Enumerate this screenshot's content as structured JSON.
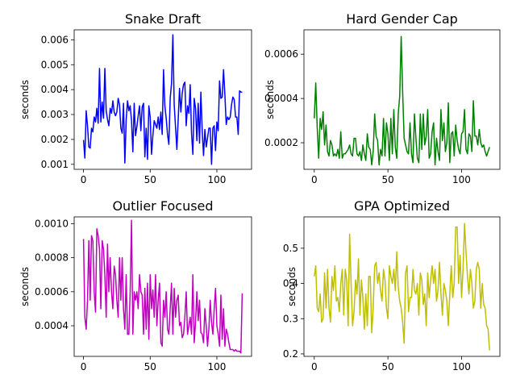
{
  "chart_data": [
    {
      "type": "line",
      "title": "Snake Draft",
      "ylabel": "seconds",
      "xlabel": "",
      "color": "#0000ff",
      "xlim": [
        -7,
        126
      ],
      "ylim": [
        0.0008,
        0.0064
      ],
      "xticks": [
        "0",
        "50",
        "100"
      ],
      "yticks": [
        "0.001",
        "0.002",
        "0.003",
        "0.004",
        "0.005",
        "0.006"
      ],
      "x_start": 0,
      "values": [
        0.00198,
        0.00125,
        0.00315,
        0.00255,
        0.0017,
        0.00165,
        0.00245,
        0.0023,
        0.0029,
        0.0027,
        0.00325,
        0.00265,
        0.00485,
        0.0027,
        0.0035,
        0.00285,
        0.00485,
        0.00315,
        0.0028,
        0.00255,
        0.00325,
        0.00305,
        0.00355,
        0.0031,
        0.00295,
        0.0031,
        0.00365,
        0.0034,
        0.00245,
        0.00225,
        0.00345,
        0.00105,
        0.0028,
        0.00355,
        0.00315,
        0.00335,
        0.00275,
        0.0015,
        0.00345,
        0.00215,
        0.0025,
        0.00295,
        0.00335,
        0.00235,
        0.0033,
        0.00345,
        0.0013,
        0.00245,
        0.0012,
        0.00335,
        0.0029,
        0.0014,
        0.00215,
        0.00275,
        0.0026,
        0.00245,
        0.0029,
        0.0024,
        0.0031,
        0.0022,
        0.0048,
        0.00335,
        0.00285,
        0.0022,
        0.0018,
        0.00365,
        0.00425,
        0.0062,
        0.0034,
        0.0025,
        0.0016,
        0.0028,
        0.00405,
        0.0031,
        0.00385,
        0.0042,
        0.0043,
        0.00255,
        0.00335,
        0.00305,
        0.0042,
        0.00225,
        0.0014,
        0.00365,
        0.00325,
        0.00195,
        0.00345,
        0.00185,
        0.0039,
        0.00235,
        0.00135,
        0.0024,
        0.0017,
        0.00205,
        0.00245,
        0.00245,
        0.001,
        0.00245,
        0.00255,
        0.00155,
        0.0027,
        0.00235,
        0.00435,
        0.00365,
        0.0037,
        0.0048,
        0.0038,
        0.0026,
        0.0029,
        0.0028,
        0.0029,
        0.0034,
        0.0037,
        0.0036,
        0.0029,
        0.0029,
        0.0022,
        0.00395,
        0.0039,
        0.0039
      ]
    },
    {
      "type": "line",
      "title": "Hard Gender Cap",
      "ylabel": "seconds",
      "xlabel": "",
      "color": "#008000",
      "xlim": [
        -7,
        126
      ],
      "ylim": [
        8e-05,
        0.00071
      ],
      "xticks": [
        "0",
        "50",
        "100"
      ],
      "yticks": [
        "0.0002",
        "0.0004",
        "0.0006"
      ],
      "x_start": 0,
      "values": [
        0.00031,
        0.00047,
        0.00027,
        0.00013,
        0.00031,
        0.00026,
        0.00034,
        0.00019,
        0.00028,
        0.00016,
        0.00014,
        0.00021,
        0.00019,
        0.00014,
        0.00015,
        0.00014,
        0.00017,
        0.00013,
        0.00025,
        0.00013,
        0.00015,
        0.00015,
        0.00016,
        0.00017,
        0.00019,
        0.00015,
        0.00014,
        0.00022,
        0.00022,
        0.00015,
        0.00014,
        0.00016,
        0.00012,
        0.00019,
        0.00015,
        0.00012,
        0.00024,
        0.00018,
        0.00017,
        0.0001,
        0.00016,
        0.00033,
        0.00023,
        0.00021,
        0.0001,
        0.00017,
        0.00014,
        0.00031,
        0.00014,
        0.00029,
        0.00024,
        0.00012,
        0.00031,
        0.00015,
        0.00035,
        0.00018,
        0.00013,
        0.00033,
        0.00041,
        0.00068,
        0.00043,
        0.00022,
        0.00019,
        0.00016,
        0.00015,
        0.00029,
        0.00015,
        0.00011,
        0.00033,
        0.00022,
        0.00013,
        0.00011,
        0.00033,
        0.00017,
        0.00033,
        0.00019,
        0.00023,
        0.00035,
        0.00013,
        0.00015,
        0.00025,
        0.00029,
        0.0001,
        0.00022,
        0.00016,
        0.00012,
        0.00035,
        0.00021,
        0.00029,
        0.00016,
        0.0002,
        0.00038,
        0.00011,
        0.00024,
        0.00025,
        0.00014,
        0.00028,
        0.00021,
        0.00017,
        0.00015,
        0.00024,
        0.00025,
        0.00035,
        0.00017,
        0.00015,
        0.00024,
        0.00023,
        0.00016,
        0.00039,
        0.00023,
        0.00023,
        0.00019,
        0.00026,
        0.0002,
        0.00018,
        0.00019,
        0.00016,
        0.00014,
        0.00016,
        0.00018
      ]
    },
    {
      "type": "line",
      "title": "Outlier Focused",
      "ylabel": "seconds",
      "xlabel": "",
      "color": "#bf00bf",
      "xlim": [
        -7,
        126
      ],
      "ylim": [
        0.00022,
        0.00104
      ],
      "xticks": [
        "0",
        "50",
        "100"
      ],
      "yticks": [
        "0.0004",
        "0.0006",
        "0.0008",
        "0.0010"
      ],
      "x_start": 0,
      "values": [
        0.00091,
        0.00045,
        0.00038,
        0.00055,
        0.0009,
        0.00055,
        0.00093,
        0.0009,
        0.0006,
        0.00048,
        0.00097,
        0.00093,
        0.00085,
        0.0005,
        0.0009,
        0.00085,
        0.0007,
        0.00045,
        0.00088,
        0.0006,
        0.0008,
        0.0006,
        0.0005,
        0.00075,
        0.0007,
        0.00055,
        0.00045,
        0.0008,
        0.00055,
        0.0008,
        0.0005,
        0.00038,
        0.0007,
        0.00035,
        0.00035,
        0.0006,
        0.00102,
        0.00035,
        0.0006,
        0.00055,
        0.0006,
        0.0005,
        0.0007,
        0.0006,
        0.00058,
        0.00035,
        0.00062,
        0.00038,
        0.00065,
        0.00032,
        0.0007,
        0.0005,
        0.00061,
        0.00045,
        0.0007,
        0.0004,
        0.00055,
        0.00065,
        0.0003,
        0.00028,
        0.00055,
        0.00045,
        0.0006,
        0.00038,
        0.00035,
        0.0005,
        0.00065,
        0.00035,
        0.00062,
        0.00045,
        0.00055,
        0.00058,
        0.0004,
        0.00042,
        0.00033,
        0.00035,
        0.00045,
        0.0006,
        0.00035,
        0.0004,
        0.00045,
        0.00035,
        0.0007,
        0.0003,
        0.00042,
        0.0006,
        0.00043,
        0.00055,
        0.00036,
        0.00035,
        0.0003,
        0.0005,
        0.0004,
        0.00028,
        0.00038,
        0.00055,
        0.00042,
        0.00035,
        0.0005,
        0.00062,
        0.0004,
        0.00035,
        0.00028,
        0.00058,
        0.00032,
        0.0005,
        0.00028,
        0.00038,
        0.00035,
        0.0003,
        0.00026,
        0.00026,
        0.00026,
        0.00025,
        0.00026,
        0.00025,
        0.00025,
        0.00025,
        0.00024,
        0.00059
      ]
    },
    {
      "type": "line",
      "title": "GPA Optimized",
      "ylabel": "seconds",
      "xlabel": "",
      "color": "#bfbf00",
      "xlim": [
        -7,
        126
      ],
      "ylim": [
        0.193,
        0.589
      ],
      "xticks": [
        "0",
        "50",
        "100"
      ],
      "yticks": [
        "0.2",
        "0.3",
        "0.4",
        "0.5"
      ],
      "x_start": 0,
      "values": [
        0.42,
        0.45,
        0.33,
        0.32,
        0.37,
        0.29,
        0.3,
        0.43,
        0.33,
        0.44,
        0.33,
        0.29,
        0.42,
        0.38,
        0.45,
        0.35,
        0.36,
        0.32,
        0.4,
        0.44,
        0.31,
        0.44,
        0.41,
        0.28,
        0.54,
        0.4,
        0.28,
        0.32,
        0.41,
        0.37,
        0.47,
        0.31,
        0.41,
        0.36,
        0.27,
        0.37,
        0.28,
        0.42,
        0.42,
        0.26,
        0.33,
        0.45,
        0.46,
        0.4,
        0.43,
        0.38,
        0.35,
        0.44,
        0.41,
        0.33,
        0.3,
        0.45,
        0.42,
        0.4,
        0.44,
        0.38,
        0.49,
        0.39,
        0.35,
        0.33,
        0.29,
        0.23,
        0.43,
        0.45,
        0.32,
        0.36,
        0.36,
        0.44,
        0.38,
        0.37,
        0.4,
        0.31,
        0.43,
        0.41,
        0.34,
        0.37,
        0.28,
        0.43,
        0.36,
        0.41,
        0.45,
        0.4,
        0.44,
        0.35,
        0.38,
        0.46,
        0.37,
        0.31,
        0.4,
        0.38,
        0.35,
        0.28,
        0.37,
        0.45,
        0.36,
        0.4,
        0.56,
        0.56,
        0.4,
        0.48,
        0.36,
        0.44,
        0.57,
        0.49,
        0.42,
        0.37,
        0.44,
        0.4,
        0.33,
        0.35,
        0.44,
        0.46,
        0.44,
        0.33,
        0.4,
        0.34,
        0.33,
        0.28,
        0.27,
        0.21
      ]
    }
  ]
}
